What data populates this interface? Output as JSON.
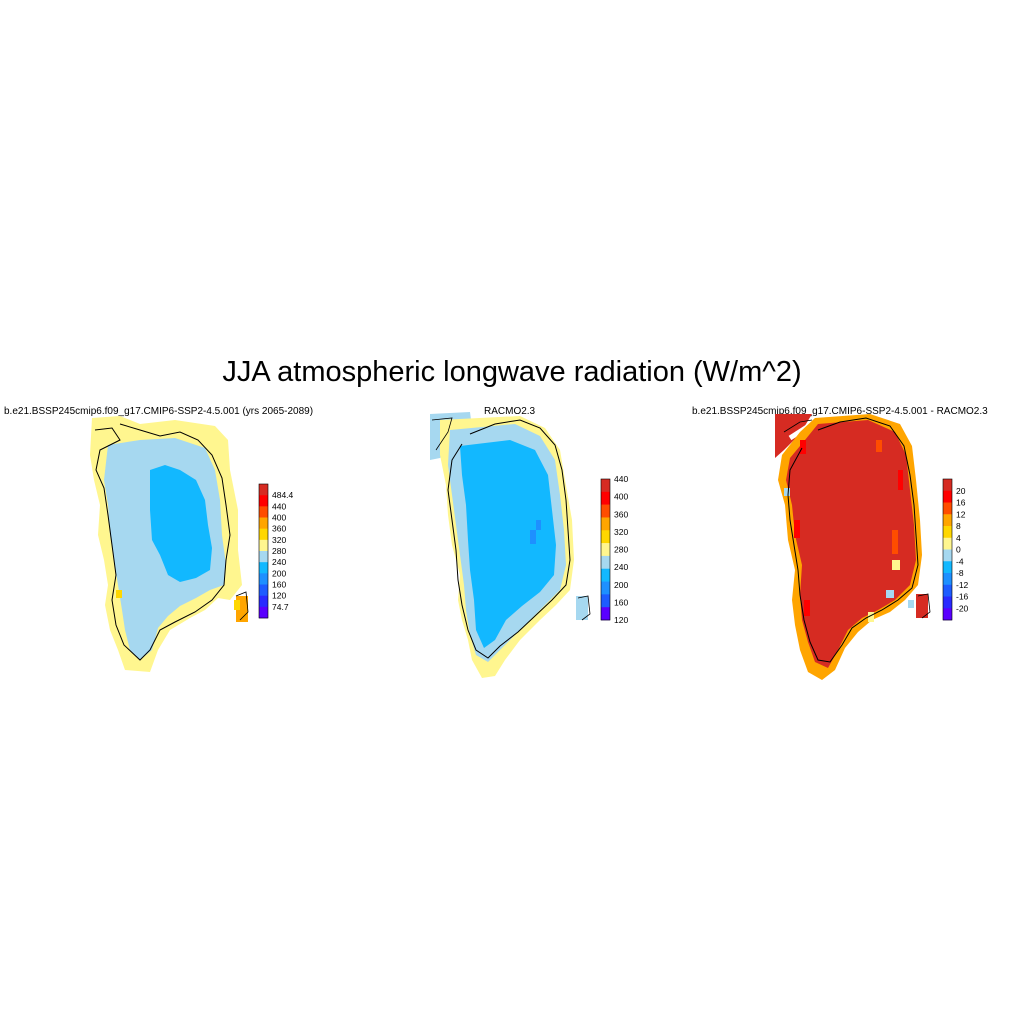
{
  "figure": {
    "title": "JJA atmospheric longwave radiation (W/m^2)"
  },
  "panels": [
    {
      "id": "model",
      "title": "b.e21.BSSP245cmip6.f09_g17.CMIP6-SSP2-4.5.001 (yrs 2065-2089)",
      "colorbar": {
        "labels": [
          "484.4",
          "440",
          "400",
          "360",
          "320",
          "280",
          "240",
          "200",
          "160",
          "120",
          "74.7"
        ],
        "colors": [
          "#d62b22",
          "#ff0000",
          "#ff4d00",
          "#ffa500",
          "#ffd700",
          "#fff68f",
          "#a6d8f0",
          "#12b8ff",
          "#1e90ff",
          "#1e5cff",
          "#2a2aff",
          "#5a00ff"
        ]
      }
    },
    {
      "id": "obs",
      "title": "RACMO2.3",
      "colorbar": {
        "labels": [
          "440",
          "400",
          "360",
          "320",
          "280",
          "240",
          "200",
          "160",
          "120"
        ],
        "colors": [
          "#d62b22",
          "#ff0000",
          "#ff4d00",
          "#ffa500",
          "#ffd700",
          "#fff68f",
          "#a6d8f0",
          "#12b8ff",
          "#1e90ff",
          "#1e5cff",
          "#5a00ff"
        ]
      }
    },
    {
      "id": "diff",
      "title": "b.e21.BSSP245cmip6.f09_g17.CMIP6-SSP2-4.5.001 - RACMO2.3",
      "colorbar": {
        "labels": [
          "20",
          "16",
          "12",
          "8",
          "4",
          "0",
          "-4",
          "-8",
          "-12",
          "-16",
          "-20"
        ],
        "colors": [
          "#d62b22",
          "#ff0000",
          "#ff4d00",
          "#ffa500",
          "#ffd700",
          "#fff68f",
          "#a6d8f0",
          "#12b8ff",
          "#1e90ff",
          "#1e5cff",
          "#2a2aff",
          "#5a00ff"
        ]
      }
    }
  ]
}
